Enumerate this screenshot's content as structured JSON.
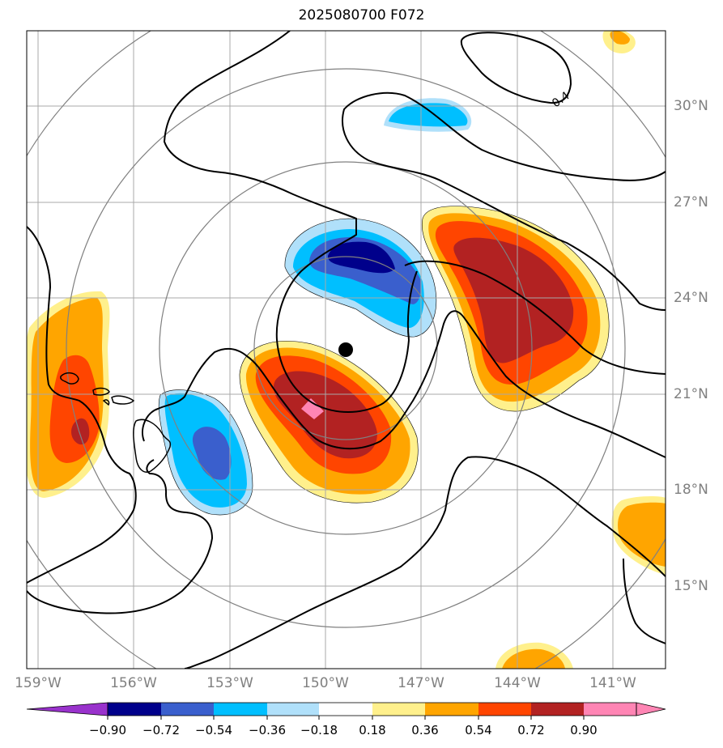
{
  "title": "2025080700 F072",
  "contour_label": "0.4",
  "lat_labels": [
    "30°N",
    "27°N",
    "24°N",
    "21°N",
    "18°N",
    "15°N"
  ],
  "lon_labels": [
    "159°W",
    "156°W",
    "153°W",
    "150°W",
    "147°W",
    "144°W",
    "141°W"
  ],
  "colorbar": {
    "ticks": [
      "−0.90",
      "−0.72",
      "−0.54",
      "−0.36",
      "−0.18",
      "0.18",
      "0.36",
      "0.54",
      "0.72",
      "0.90"
    ],
    "colors": [
      "#9932cc",
      "#00008b",
      "#3a5fcd",
      "#00bfff",
      "#b0e0fa",
      "#ffffff",
      "#fff08c",
      "#ffa500",
      "#ff4500",
      "#b22222",
      "#ff85b4"
    ]
  },
  "colors": {
    "grid": "#a8a8a8",
    "range_rings": "#808080",
    "contours": "#000000",
    "coastline": "#000000",
    "center_marker": "#000000"
  }
}
